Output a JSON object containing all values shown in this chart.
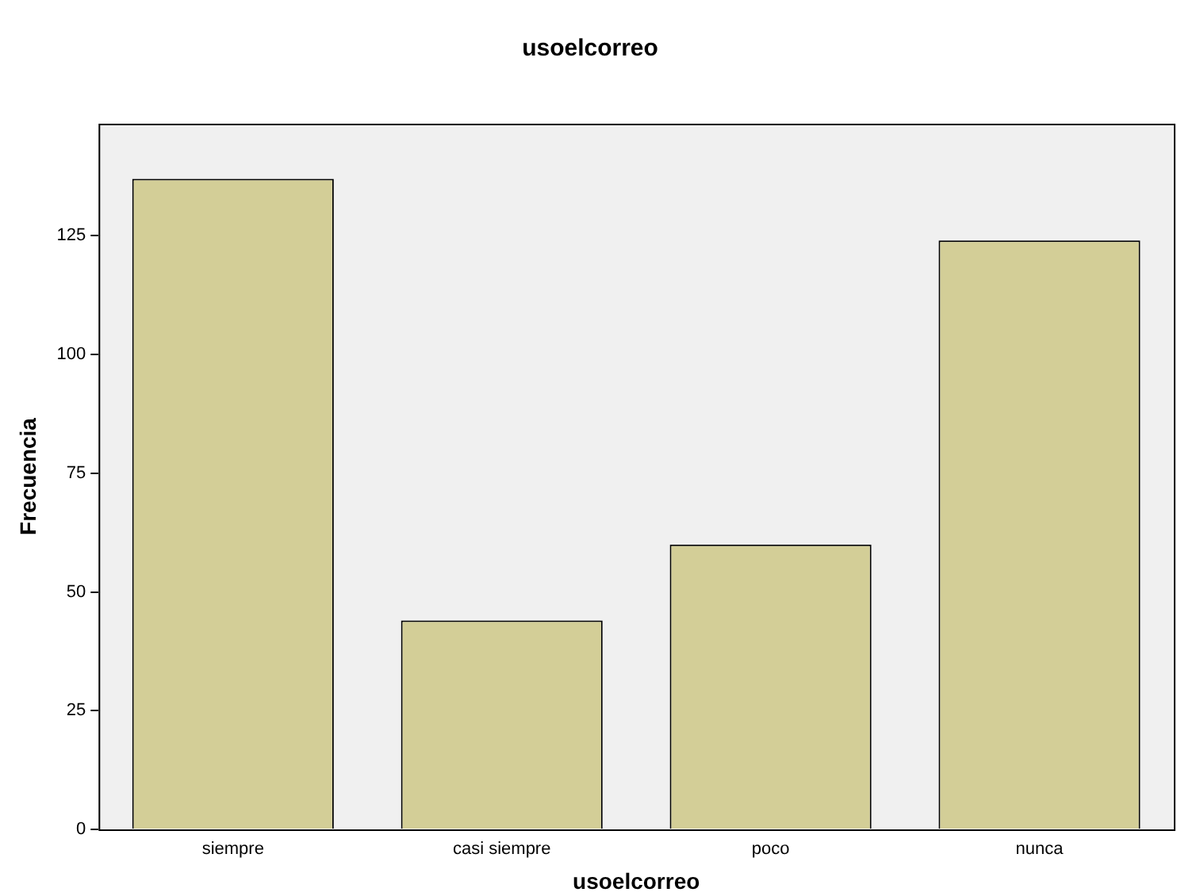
{
  "chart_data": {
    "type": "bar",
    "title": "usoelcorreo",
    "xlabel": "usoelcorreo",
    "ylabel": "Frecuencia",
    "categories": [
      "siempre",
      "casi siempre",
      "poco",
      "nunca"
    ],
    "values": [
      137,
      44,
      60,
      124
    ],
    "color": "#d3ce97",
    "ylim": [
      0,
      148.6
    ],
    "yticks": [
      0,
      25,
      50,
      75,
      100,
      125
    ],
    "grid": false,
    "legend": false
  }
}
